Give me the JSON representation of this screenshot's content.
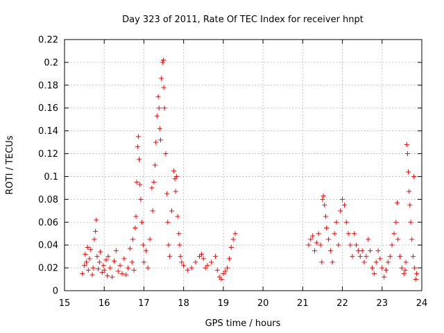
{
  "chart_data": {
    "type": "scatter",
    "title": "Day 323 of 2011, Rate Of TEC Index for receiver hnpt",
    "xlabel": "GPS time / hours",
    "ylabel": "ROTI / TECUs",
    "xlim": [
      15,
      24
    ],
    "ylim": [
      0,
      0.22
    ],
    "x_ticks": [
      15,
      16,
      17,
      18,
      19,
      20,
      21,
      22,
      23,
      24
    ],
    "y_ticks": [
      0,
      0.02,
      0.04,
      0.06,
      0.08,
      0.1,
      0.12,
      0.14,
      0.16,
      0.18,
      0.2,
      0.22
    ],
    "x_tick_labels": [
      "15",
      "16",
      "17",
      "18",
      "19",
      "20",
      "21",
      "22",
      "23",
      "24"
    ],
    "y_tick_labels": [
      "0",
      "0.02",
      "0.04",
      "0.06",
      "0.08",
      "0.1",
      "0.12",
      "0.14",
      "0.16",
      "0.18",
      "0.2",
      "0.22"
    ],
    "grid": true,
    "marker": "plus",
    "marker_color": "#ff0000",
    "series": [
      {
        "points": [
          [
            15.45,
            0.015
          ],
          [
            15.5,
            0.022
          ],
          [
            15.52,
            0.032
          ],
          [
            15.55,
            0.025
          ],
          [
            15.58,
            0.038
          ],
          [
            15.6,
            0.018
          ],
          [
            15.63,
            0.028
          ],
          [
            15.66,
            0.036
          ],
          [
            15.7,
            0.014
          ],
          [
            15.72,
            0.02
          ],
          [
            15.75,
            0.045
          ],
          [
            15.78,
            0.052
          ],
          [
            15.8,
            0.062
          ],
          [
            15.82,
            0.03
          ],
          [
            15.85,
            0.019
          ],
          [
            15.88,
            0.025
          ],
          [
            15.9,
            0.034
          ],
          [
            15.95,
            0.016
          ],
          [
            15.98,
            0.022
          ],
          [
            16.0,
            0.018
          ],
          [
            16.05,
            0.027
          ],
          [
            16.08,
            0.013
          ],
          [
            16.1,
            0.03
          ],
          [
            16.15,
            0.02
          ],
          [
            16.2,
            0.012
          ],
          [
            16.25,
            0.026
          ],
          [
            16.3,
            0.035
          ],
          [
            16.35,
            0.017
          ],
          [
            16.4,
            0.022
          ],
          [
            16.45,
            0.015
          ],
          [
            16.5,
            0.028
          ],
          [
            16.55,
            0.014
          ],
          [
            16.6,
            0.02
          ],
          [
            16.65,
            0.037
          ],
          [
            16.7,
            0.025
          ],
          [
            16.72,
            0.045
          ],
          [
            16.75,
            0.018
          ],
          [
            16.78,
            0.055
          ],
          [
            16.8,
            0.065
          ],
          [
            16.82,
            0.095
          ],
          [
            16.84,
            0.126
          ],
          [
            16.86,
            0.135
          ],
          [
            16.88,
            0.115
          ],
          [
            16.9,
            0.093
          ],
          [
            16.92,
            0.08
          ],
          [
            16.95,
            0.06
          ],
          [
            16.98,
            0.04
          ],
          [
            17.0,
            0.025
          ],
          [
            17.05,
            0.035
          ],
          [
            17.1,
            0.02
          ],
          [
            17.15,
            0.045
          ],
          [
            17.2,
            0.09
          ],
          [
            17.22,
            0.07
          ],
          [
            17.25,
            0.095
          ],
          [
            17.28,
            0.11
          ],
          [
            17.3,
            0.13
          ],
          [
            17.33,
            0.153
          ],
          [
            17.36,
            0.17
          ],
          [
            17.38,
            0.16
          ],
          [
            17.4,
            0.142
          ],
          [
            17.42,
            0.132
          ],
          [
            17.44,
            0.186
          ],
          [
            17.47,
            0.2
          ],
          [
            17.49,
            0.202
          ],
          [
            17.5,
            0.178
          ],
          [
            17.52,
            0.16
          ],
          [
            17.55,
            0.12
          ],
          [
            17.58,
            0.085
          ],
          [
            17.6,
            0.06
          ],
          [
            17.62,
            0.04
          ],
          [
            17.65,
            0.03
          ],
          [
            17.7,
            0.07
          ],
          [
            17.75,
            0.105
          ],
          [
            17.78,
            0.098
          ],
          [
            17.8,
            0.087
          ],
          [
            17.82,
            0.1
          ],
          [
            17.85,
            0.065
          ],
          [
            17.88,
            0.05
          ],
          [
            17.9,
            0.04
          ],
          [
            17.92,
            0.03
          ],
          [
            17.95,
            0.025
          ],
          [
            18.0,
            0.022
          ],
          [
            18.1,
            0.018
          ],
          [
            18.2,
            0.02
          ],
          [
            18.3,
            0.025
          ],
          [
            18.4,
            0.03
          ],
          [
            18.45,
            0.032
          ],
          [
            18.5,
            0.028
          ],
          [
            18.55,
            0.02
          ],
          [
            18.6,
            0.022
          ],
          [
            18.7,
            0.025
          ],
          [
            18.8,
            0.03
          ],
          [
            18.85,
            0.018
          ],
          [
            18.9,
            0.012
          ],
          [
            18.95,
            0.01
          ],
          [
            19.0,
            0.015
          ],
          [
            19.05,
            0.017
          ],
          [
            19.1,
            0.02
          ],
          [
            19.15,
            0.028
          ],
          [
            19.2,
            0.038
          ],
          [
            19.25,
            0.045
          ],
          [
            19.3,
            0.05
          ],
          [
            21.15,
            0.04
          ],
          [
            21.2,
            0.045
          ],
          [
            21.25,
            0.048
          ],
          [
            21.3,
            0.035
          ],
          [
            21.35,
            0.042
          ],
          [
            21.4,
            0.05
          ],
          [
            21.45,
            0.04
          ],
          [
            21.48,
            0.025
          ],
          [
            21.5,
            0.08
          ],
          [
            21.52,
            0.083
          ],
          [
            21.55,
            0.075
          ],
          [
            21.58,
            0.065
          ],
          [
            21.6,
            0.055
          ],
          [
            21.65,
            0.045
          ],
          [
            21.7,
            0.035
          ],
          [
            21.75,
            0.025
          ],
          [
            21.8,
            0.05
          ],
          [
            21.85,
            0.06
          ],
          [
            21.9,
            0.04
          ],
          [
            21.95,
            0.07
          ],
          [
            22.0,
            0.08
          ],
          [
            22.05,
            0.075
          ],
          [
            22.1,
            0.06
          ],
          [
            22.15,
            0.05
          ],
          [
            22.2,
            0.04
          ],
          [
            22.25,
            0.03
          ],
          [
            22.3,
            0.05
          ],
          [
            22.35,
            0.04
          ],
          [
            22.4,
            0.035
          ],
          [
            22.45,
            0.03
          ],
          [
            22.5,
            0.035
          ],
          [
            22.55,
            0.025
          ],
          [
            22.6,
            0.03
          ],
          [
            22.65,
            0.045
          ],
          [
            22.7,
            0.035
          ],
          [
            22.75,
            0.02
          ],
          [
            22.8,
            0.015
          ],
          [
            22.85,
            0.025
          ],
          [
            22.9,
            0.035
          ],
          [
            22.95,
            0.028
          ],
          [
            23.0,
            0.02
          ],
          [
            23.05,
            0.012
          ],
          [
            23.1,
            0.018
          ],
          [
            23.15,
            0.025
          ],
          [
            23.2,
            0.03
          ],
          [
            23.25,
            0.04
          ],
          [
            23.3,
            0.05
          ],
          [
            23.35,
            0.06
          ],
          [
            23.38,
            0.077
          ],
          [
            23.4,
            0.045
          ],
          [
            23.45,
            0.03
          ],
          [
            23.5,
            0.02
          ],
          [
            23.55,
            0.015
          ],
          [
            23.58,
            0.018
          ],
          [
            23.6,
            0.025
          ],
          [
            23.62,
            0.128
          ],
          [
            23.64,
            0.12
          ],
          [
            23.66,
            0.104
          ],
          [
            23.68,
            0.087
          ],
          [
            23.7,
            0.075
          ],
          [
            23.72,
            0.06
          ],
          [
            23.75,
            0.045
          ],
          [
            23.78,
            0.03
          ],
          [
            23.8,
            0.1
          ],
          [
            23.82,
            0.02
          ],
          [
            23.85,
            0.01
          ],
          [
            23.87,
            0.015
          ]
        ]
      }
    ]
  }
}
